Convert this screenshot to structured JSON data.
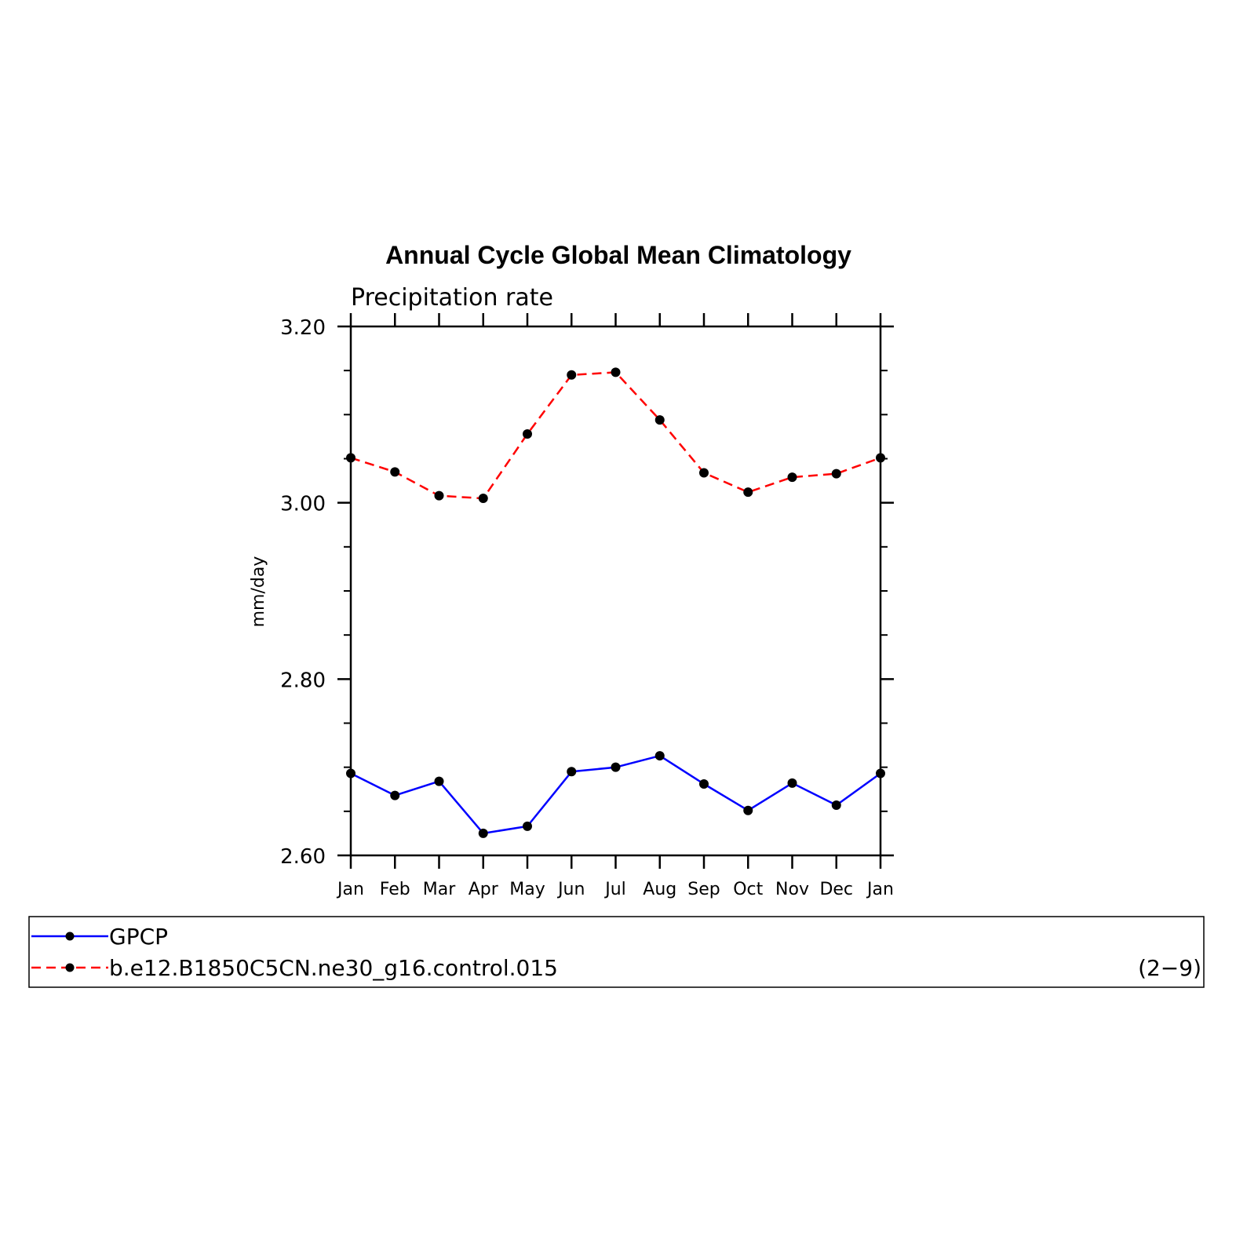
{
  "chart_data": {
    "type": "line",
    "title": "Annual Cycle Global Mean Climatology",
    "subtitle": "Precipitation rate",
    "ylabel": "mm/day",
    "xlabel": "",
    "categories": [
      "Jan",
      "Feb",
      "Mar",
      "Apr",
      "May",
      "Jun",
      "Jul",
      "Aug",
      "Sep",
      "Oct",
      "Nov",
      "Dec",
      "Jan"
    ],
    "ylim": [
      2.6,
      3.2
    ],
    "yticks": [
      2.6,
      2.8,
      3.0,
      3.2
    ],
    "ytick_labels": [
      "2.60",
      "2.80",
      "3.00",
      "3.20"
    ],
    "y_minor_step": 0.05,
    "series": [
      {
        "name": "GPCP",
        "color": "#0000ff",
        "style": "solid",
        "marker": "dot",
        "values": [
          2.693,
          2.668,
          2.684,
          2.625,
          2.633,
          2.695,
          2.7,
          2.713,
          2.681,
          2.651,
          2.682,
          2.657,
          2.693
        ]
      },
      {
        "name": "b.e12.B1850C5CN.ne30_g16.control.015",
        "color": "#ff0000",
        "style": "dashed",
        "marker": "dot",
        "values": [
          3.051,
          3.035,
          3.008,
          3.005,
          3.078,
          3.145,
          3.148,
          3.094,
          3.034,
          3.012,
          3.029,
          3.033,
          3.051
        ]
      }
    ],
    "legend_position": "bottom",
    "legend_note": "(2−9)",
    "grid": false
  }
}
